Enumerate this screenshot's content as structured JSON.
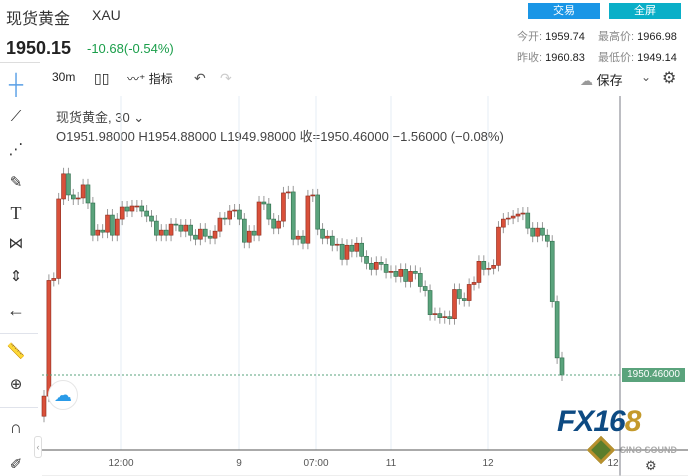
{
  "header": {
    "title": "现货黄金",
    "symbol": "XAU",
    "price": "1950.15",
    "change": "-10.68(-0.54%)",
    "trade_label": "交易",
    "fullscreen_label": "全屏"
  },
  "stats": {
    "open_label": "今开:",
    "open": "1959.74",
    "high_label": "最高价:",
    "high": "1966.98",
    "prev_close_label": "昨收:",
    "prev_close": "1960.83",
    "low_label": "最低价:",
    "low": "1949.14"
  },
  "toolbar": {
    "interval": "30m",
    "indicators_label": "指标",
    "save_label": "保存"
  },
  "legend": {
    "name": "现货黄金, 30",
    "ohlc": "O1951.98000  H1954.88000  L1949.98000  收=1950.46000  −1.56000 (−0.08%)"
  },
  "colors": {
    "up": "#d9503a",
    "down": "#5aa37c",
    "accent": "#1a96e6"
  },
  "chart_data": {
    "type": "candlestick",
    "ylim": [
      1943,
      1978
    ],
    "first_open": 1946.36,
    "closes": [
      1948.36,
      1959.86,
      1960.06,
      1967.96,
      1970.46,
      1968.36,
      1967.96,
      1968.06,
      1969.36,
      1967.56,
      1964.36,
      1964.86,
      1964.66,
      1966.36,
      1964.36,
      1965.96,
      1967.16,
      1966.76,
      1967.26,
      1967.26,
      1966.76,
      1966.26,
      1965.76,
      1964.36,
      1964.86,
      1964.36,
      1965.46,
      1965.36,
      1964.76,
      1965.36,
      1964.36,
      1963.96,
      1964.96,
      1964.26,
      1964.06,
      1964.76,
      1966.06,
      1965.96,
      1966.76,
      1966.86,
      1965.96,
      1963.66,
      1964.76,
      1964.36,
      1967.66,
      1967.46,
      1965.96,
      1965.06,
      1965.76,
      1968.56,
      1968.66,
      1963.96,
      1964.26,
      1963.56,
      1968.26,
      1968.36,
      1964.96,
      1964.06,
      1964.26,
      1963.36,
      1963.46,
      1961.96,
      1963.36,
      1962.76,
      1963.56,
      1962.26,
      1961.56,
      1960.96,
      1961.66,
      1961.46,
      1960.66,
      1960.76,
      1960.26,
      1960.96,
      1959.76,
      1960.76,
      1960.56,
      1959.26,
      1958.86,
      1956.46,
      1956.56,
      1956.16,
      1956.26,
      1956.06,
      1958.96,
      1958.06,
      1957.86,
      1959.46,
      1959.66,
      1961.76,
      1960.96,
      1961.06,
      1961.36,
      1965.16,
      1965.96,
      1966.06,
      1966.26,
      1966.46,
      1966.56,
      1965.06,
      1964.26,
      1965.06,
      1964.36,
      1963.76,
      1957.76,
      1952.16,
      1950.46
    ],
    "last_price_label": "1950.46000",
    "x_tick_labels": [
      "12:00",
      "9",
      "07:00",
      "11",
      "12",
      "12"
    ]
  }
}
